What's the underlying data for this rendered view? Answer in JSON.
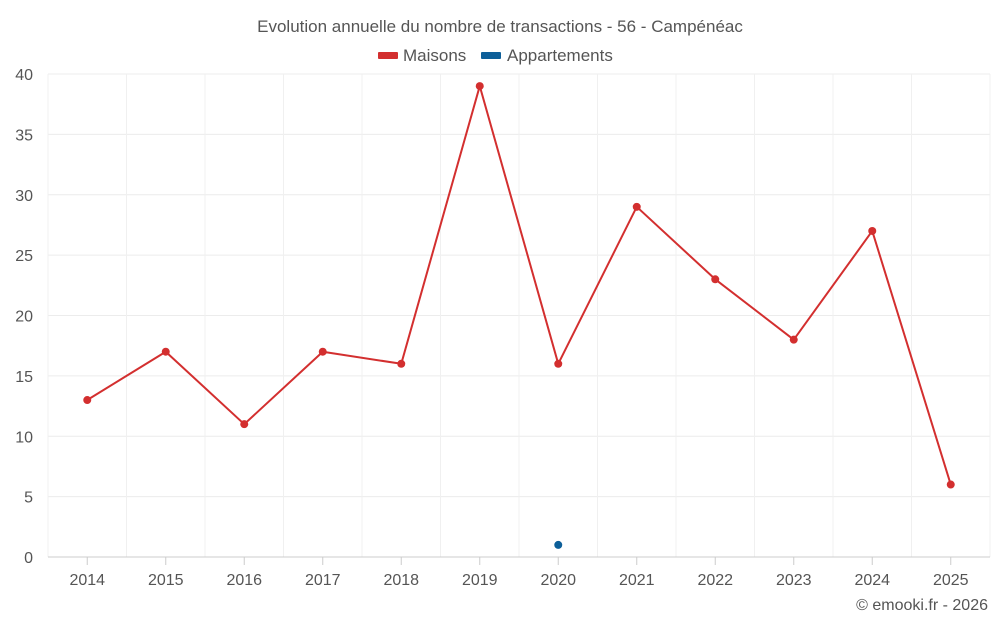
{
  "chart_data": {
    "type": "line",
    "title": "Evolution annuelle du nombre de transactions - 56 - Campénéac",
    "categories": [
      "2014",
      "2015",
      "2016",
      "2017",
      "2018",
      "2019",
      "2020",
      "2021",
      "2022",
      "2023",
      "2024",
      "2025"
    ],
    "series": [
      {
        "name": "Maisons",
        "color": "#d32f2f",
        "values": [
          13,
          17,
          11,
          17,
          16,
          39,
          16,
          29,
          23,
          18,
          27,
          6
        ]
      },
      {
        "name": "Appartements",
        "color": "#0d5f99",
        "values": [
          null,
          null,
          null,
          null,
          null,
          null,
          1,
          null,
          null,
          null,
          null,
          null
        ]
      }
    ],
    "xlabel": "",
    "ylabel": "",
    "ylim": [
      0,
      40
    ],
    "yticks": [
      0,
      5,
      10,
      15,
      20,
      25,
      30,
      35,
      40
    ],
    "grid": true,
    "legend_position": "top-center"
  },
  "credit": "© emooki.fr - 2026"
}
